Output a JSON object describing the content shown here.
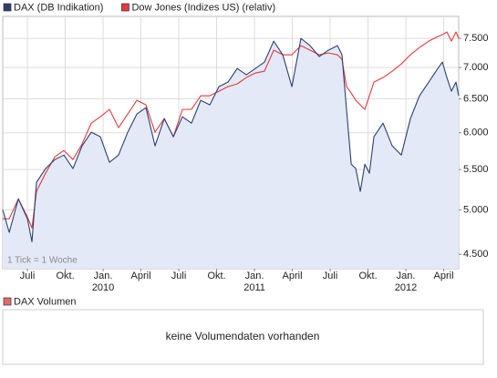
{
  "chart_data": {
    "type": "line",
    "note": "1 Tick = 1 Woche",
    "log_y": true,
    "grid": true,
    "y_axis_side": "right",
    "area_under_first_series": "#e4e9f7",
    "x": [
      2009.337,
      2009.38,
      2009.44,
      2009.5,
      2009.53,
      2009.56,
      2009.62,
      2009.681,
      2009.741,
      2009.801,
      2009.861,
      2009.922,
      2009.982,
      2010.042,
      2010.102,
      2010.163,
      2010.223,
      2010.283,
      2010.343,
      2010.404,
      2010.464,
      2010.524,
      2010.584,
      2010.645,
      2010.705,
      2010.765,
      2010.825,
      2010.886,
      2010.946,
      2011.006,
      2011.066,
      2011.127,
      2011.187,
      2011.247,
      2011.307,
      2011.367,
      2011.428,
      2011.488,
      2011.548,
      2011.578,
      2011.608,
      2011.639,
      2011.669,
      2011.699,
      2011.729,
      2011.759,
      2011.789,
      2011.849,
      2011.91,
      2011.97,
      2012.03,
      2012.09,
      2012.151,
      2012.211,
      2012.241,
      2012.271,
      2012.301,
      2012.331,
      2012.349
    ],
    "series": [
      {
        "name": "DAX (DB Indikation)",
        "color": "#2a4170",
        "values": [
          5000,
          4740,
          5131,
          4895,
          4636,
          5336,
          5512,
          5631,
          5692,
          5512,
          5816,
          6008,
          5943,
          5594,
          5692,
          6008,
          6271,
          6367,
          5816,
          6204,
          5943,
          6231,
          6138,
          6478,
          6408,
          6691,
          6763,
          6985,
          6881,
          6985,
          7091,
          7451,
          7214,
          6691,
          7500,
          7372,
          7184,
          7293,
          7372,
          7214,
          6340,
          5570,
          5512,
          5222,
          5570,
          5452,
          5943,
          6138,
          5816,
          5692,
          6204,
          6548,
          6763,
          6985,
          7091,
          6836,
          6619,
          6763,
          6548
        ]
      },
      {
        "name": "Dow Jones (Indizes US) (relativ)",
        "color": "#e8383a",
        "values": [
          4895,
          4895,
          5131,
          4916,
          4790,
          5222,
          5452,
          5667,
          5753,
          5631,
          5841,
          6138,
          6231,
          6340,
          6072,
          6271,
          6478,
          6408,
          6008,
          6204,
          5943,
          6340,
          6340,
          6548,
          6548,
          6619,
          6691,
          6734,
          6836,
          6910,
          6940,
          7293,
          7214,
          7214,
          7372,
          7293,
          7214,
          7246,
          7214,
          7137,
          6691,
          6590,
          6478,
          6408,
          6340,
          6548,
          6763,
          6836,
          6940,
          7060,
          7214,
          7340,
          7451,
          7532,
          7565,
          7614,
          7451,
          7614,
          7500
        ]
      }
    ],
    "xlim": [
      2009.337,
      2012.349
    ],
    "xticks": [
      {
        "value": 2009.5,
        "label": "Juli"
      },
      {
        "value": 2009.75,
        "label": "Okt."
      },
      {
        "value": 2010,
        "label": "Jan."
      },
      {
        "value": 2010.25,
        "label": "April"
      },
      {
        "value": 2010.5,
        "label": "Juli"
      },
      {
        "value": 2010.75,
        "label": "Okt."
      },
      {
        "value": 2011,
        "label": "Jan."
      },
      {
        "value": 2011.25,
        "label": "April"
      },
      {
        "value": 2011.5,
        "label": "Juli"
      },
      {
        "value": 2011.75,
        "label": "Okt."
      },
      {
        "value": 2012,
        "label": "Jan."
      },
      {
        "value": 2012.25,
        "label": "April"
      }
    ],
    "xticks_years": [
      2010,
      2011,
      2012
    ],
    "ylim": [
      4350,
      7900
    ],
    "yticks": [
      {
        "value": 4500,
        "label": "4.500"
      },
      {
        "value": 5000,
        "label": "5.000"
      },
      {
        "value": 5500,
        "label": "5.500"
      },
      {
        "value": 6000,
        "label": "6.000"
      },
      {
        "value": 6500,
        "label": "6.500"
      },
      {
        "value": 7000,
        "label": "7.000"
      },
      {
        "value": 7500,
        "label": "7.500"
      }
    ]
  },
  "volume_panel": {
    "legend": "DAX Volumen",
    "color": "#e06a6a",
    "message": "keine Volumendaten vorhanden"
  }
}
